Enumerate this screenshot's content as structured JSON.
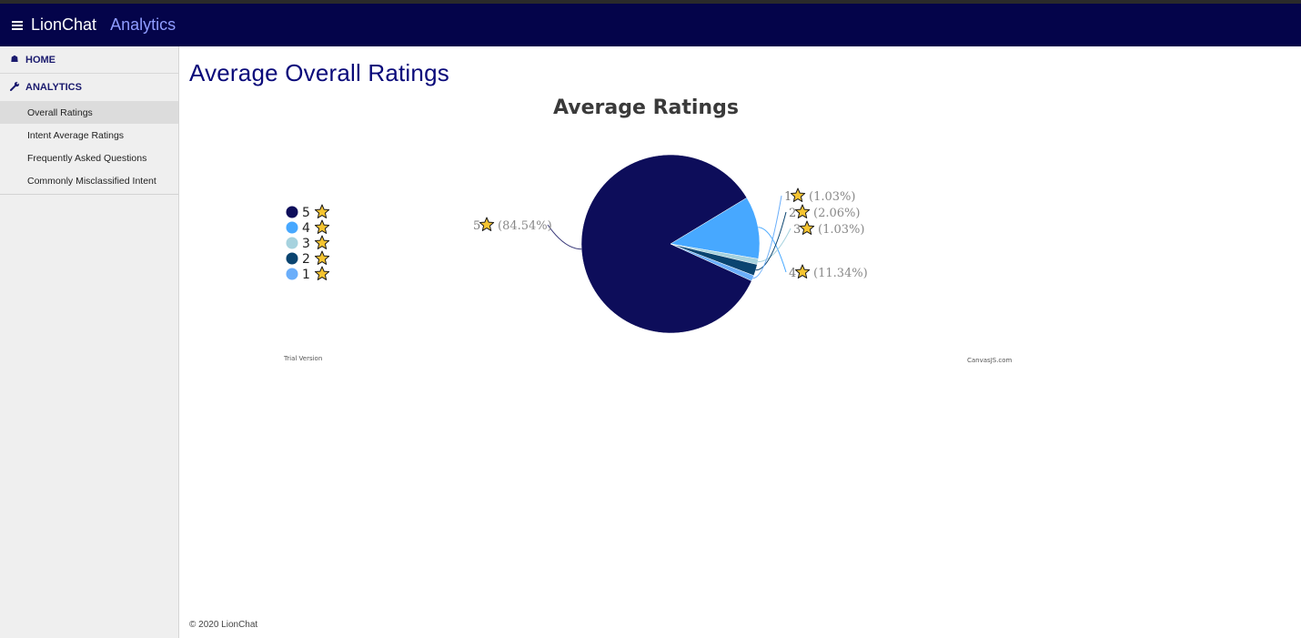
{
  "header": {
    "app_name": "LionChat",
    "section": "Analytics"
  },
  "sidebar": {
    "home_label": "HOME",
    "analytics_label": "ANALYTICS",
    "items": [
      {
        "label": "Overall Ratings",
        "active": true
      },
      {
        "label": "Intent Average Ratings",
        "active": false
      },
      {
        "label": "Frequently Asked Questions",
        "active": false
      },
      {
        "label": "Commonly Misclassified Intent",
        "active": false
      }
    ]
  },
  "page": {
    "title": "Average Overall Ratings"
  },
  "footer": {
    "copyright": "© 2020 LionChat"
  },
  "chart_data": {
    "type": "pie",
    "title": "Average Ratings",
    "legend_position": "left",
    "watermark_left": "Trial Version",
    "watermark_right": "CanvasJS.com",
    "slices": [
      {
        "label": "5",
        "percent": 84.54,
        "percent_text": "(84.54%)",
        "color": "#0d0d5a"
      },
      {
        "label": "4",
        "percent": 11.34,
        "percent_text": "(11.34%)",
        "color": "#47a8ff"
      },
      {
        "label": "3",
        "percent": 1.03,
        "percent_text": "(1.03%)",
        "color": "#a6d2de"
      },
      {
        "label": "2",
        "percent": 2.06,
        "percent_text": "(2.06%)",
        "color": "#0a4470"
      },
      {
        "label": "1",
        "percent": 1.03,
        "percent_text": "(1.03%)",
        "color": "#6aaefa"
      }
    ]
  }
}
